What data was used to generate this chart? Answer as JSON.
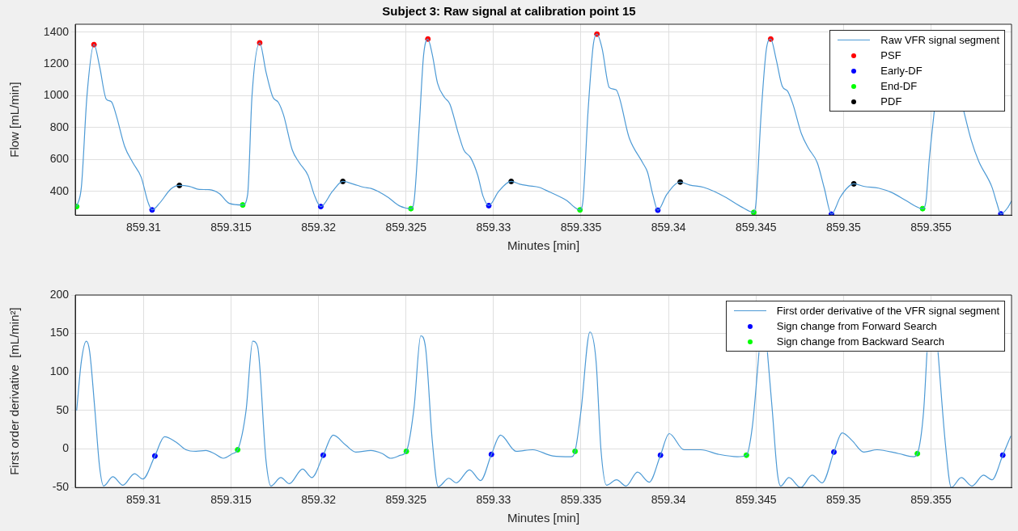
{
  "chart_data": [
    {
      "type": "line",
      "title": "Subject 3: Raw signal at calibration point 15",
      "xlabel": "Minutes [min]",
      "ylabel": "Flow [mL/min]",
      "xlim": [
        859.3061,
        859.3596
      ],
      "xticks": [
        859.31,
        859.315,
        859.32,
        859.325,
        859.33,
        859.335,
        859.34,
        859.345,
        859.35,
        859.355
      ],
      "ylim": [
        250,
        1450
      ],
      "yticks": [
        400,
        600,
        800,
        1000,
        1200,
        1400
      ],
      "grid": true,
      "legend": "top right",
      "series": [
        {
          "name": "Raw VFR signal segment",
          "marker": "none",
          "color": "#4d9ad5",
          "x": [
            859.30618,
            859.30645,
            859.30677,
            859.30717,
            859.30749,
            859.30787,
            859.30816,
            859.30844,
            859.30892,
            859.30939,
            859.30987,
            859.31025,
            859.31049,
            859.31091,
            859.31158,
            859.31205,
            859.31262,
            859.31319,
            859.31376,
            859.31433,
            859.3149,
            859.31567,
            859.31595,
            859.3162,
            859.31664,
            859.317,
            859.3174,
            859.3177,
            859.318,
            859.3185,
            859.3189,
            859.3194,
            859.31975,
            859.32013,
            859.3208,
            859.32139,
            859.322,
            859.3226,
            859.323,
            859.3234,
            859.324,
            859.3246,
            859.32528,
            859.32545,
            859.32575,
            859.326,
            859.32625,
            859.3265,
            859.3268,
            859.3272,
            859.3275,
            859.328,
            859.3283,
            859.3287,
            859.3291,
            859.3294,
            859.32973,
            859.3303,
            859.33101,
            859.3315,
            859.332,
            859.3326,
            859.3332,
            859.33414,
            859.33494,
            859.3351,
            859.3354,
            859.3357,
            859.33591,
            859.3362,
            859.33662,
            859.337,
            859.33776,
            859.33852,
            859.3388,
            859.3391,
            859.33939,
            859.3399,
            859.34067,
            859.3412,
            859.342,
            859.3426,
            859.3433,
            859.3442,
            859.34487,
            859.345,
            859.3453,
            859.3456,
            859.34584,
            859.34615,
            859.3465,
            859.3468,
            859.3471,
            859.3476,
            859.348,
            859.3485,
            859.3489,
            859.34931,
            859.3498,
            859.3502,
            859.35059,
            859.3512,
            859.352,
            859.3528,
            859.3536,
            859.35452,
            859.3547,
            859.3549,
            859.35519,
            859.356,
            859.35686,
            859.3573,
            859.35772,
            859.35848,
            859.35875,
            859.35899,
            859.3594,
            859.3596
          ],
          "values": [
            304,
            427,
            1001,
            1322,
            1185,
            980,
            964,
            878,
            683,
            580,
            488,
            334,
            283,
            324,
            416,
            437,
            431,
            412,
            410,
            386,
            324,
            314,
            380,
            1000,
            1333,
            1150,
            990,
            960,
            880,
            660,
            580,
            500,
            380,
            304,
            400,
            462,
            445,
            425,
            418,
            400,
            360,
            310,
            291,
            330,
            800,
            1250,
            1357,
            1260,
            1080,
            990,
            950,
            760,
            660,
            610,
            500,
            370,
            310,
            400,
            462,
            445,
            435,
            425,
            396,
            345,
            283,
            330,
            900,
            1320,
            1388,
            1300,
            1052,
            1038,
            734,
            580,
            520,
            380,
            281,
            380,
            458,
            440,
            425,
            400,
            360,
            300,
            267,
            330,
            900,
            1300,
            1357,
            1230,
            1060,
            1030,
            950,
            760,
            670,
            580,
            420,
            256,
            360,
            420,
            447,
            430,
            420,
            390,
            340,
            291,
            330,
            600,
            908,
            null,
            908,
            720,
            590,
            427,
            330,
            258,
            300,
            340
          ]
        },
        {
          "name": "PSF",
          "type": "scatter",
          "marker": "circle",
          "color": "#ff0000",
          "x": [
            859.30717,
            859.31664,
            859.32625,
            859.33591,
            859.34584
          ],
          "values": [
            1322,
            1333,
            1357,
            1388,
            1357
          ]
        },
        {
          "name": "Early-DF",
          "type": "scatter",
          "marker": "circle",
          "color": "#0000ff",
          "x": [
            859.31049,
            859.32013,
            859.32973,
            859.33939,
            859.34931,
            859.35899
          ],
          "values": [
            283,
            304,
            310,
            281,
            256,
            258
          ]
        },
        {
          "name": "End-DF",
          "type": "scatter",
          "marker": "circle",
          "color": "#00ff00",
          "x": [
            859.30618,
            859.31567,
            859.32528,
            859.33494,
            859.34487,
            859.35452
          ],
          "values": [
            304,
            314,
            291,
            283,
            267,
            291
          ]
        },
        {
          "name": "PDF",
          "type": "scatter",
          "marker": "circle",
          "color": "#000000",
          "x": [
            859.31205,
            859.32139,
            859.33101,
            859.34067,
            859.35059
          ],
          "values": [
            437,
            462,
            462,
            458,
            447
          ]
        }
      ]
    },
    {
      "type": "line",
      "xlabel": "Minutes [min]",
      "ylabel": "First order derivative  [mL/min²]",
      "xlim": [
        859.3061,
        859.3596
      ],
      "xticks": [
        859.31,
        859.315,
        859.32,
        859.325,
        859.33,
        859.335,
        859.34,
        859.345,
        859.35,
        859.355
      ],
      "ylim": [
        -50,
        200
      ],
      "yticks": [
        -50,
        0,
        50,
        100,
        150,
        200
      ],
      "grid": true,
      "legend": "top right",
      "series": [
        {
          "name": "First order derivative of the VFR signal segment",
          "marker": "none",
          "color": "#4d9ad5",
          "x": [
            859.30618,
            859.30645,
            859.30673,
            859.30692,
            859.30721,
            859.30749,
            859.30772,
            859.30825,
            859.30882,
            859.30949,
            859.30996,
            859.31065,
            859.3112,
            859.31186,
            859.31243,
            859.313,
            859.31357,
            859.31405,
            859.31456,
            859.31509,
            859.31538,
            859.31586,
            859.31624,
            859.31652,
            859.317,
            859.31728,
            859.31785,
            859.31833,
            859.31909,
            859.31962,
            859.32027,
            859.32084,
            859.32156,
            859.32213,
            859.32299,
            859.32365,
            859.32413,
            859.3247,
            859.32502,
            859.32546,
            859.32584,
            859.32612,
            859.3265,
            859.32684,
            859.32745,
            859.32787,
            859.32863,
            859.32926,
            859.32988,
            859.3304,
            859.33129,
            859.33224,
            859.33338,
            859.33443,
            859.33466,
            859.335,
            859.33551,
            859.33586,
            859.33614,
            859.33646,
            859.33703,
            859.33757,
            859.33823,
            859.3389,
            859.33954,
            859.34004,
            859.34089,
            859.34184,
            859.34289,
            859.34393,
            859.34445,
            859.34479,
            859.34508,
            859.34517,
            859.3454,
            859.34565,
            859.34593,
            859.34622,
            859.34641,
            859.34688,
            859.34755,
            859.34821,
            859.34878,
            859.34945,
            859.34992,
            859.35049,
            859.35116,
            859.35192,
            859.35315,
            859.35401,
            859.35422,
            859.35458,
            859.35477,
            859.355,
            859.3554,
            859.35582,
            859.35616,
            859.35673,
            859.35734,
            859.358,
            859.35848,
            859.3591,
            859.35956
          ],
          "values": [
            50,
            114,
            140,
            127,
            54,
            -23,
            -48,
            -36,
            -47,
            -32,
            -39,
            -9,
            16,
            9,
            -1,
            -3,
            -2,
            -6,
            -12,
            -6,
            -1,
            50,
            140,
            133,
            -15,
            -48,
            -37,
            -45,
            -26,
            -37,
            -8,
            18,
            5,
            -4,
            -2,
            -6,
            -12,
            -8,
            -3,
            54,
            147,
            131,
            11,
            -49,
            -38,
            -44,
            -27,
            -41,
            -7,
            18,
            -3,
            -1,
            -9,
            -10,
            -3,
            50,
            152,
            114,
            -1,
            -47,
            -40,
            -48,
            -30,
            -43,
            -8,
            20,
            -1,
            -1,
            -7,
            -10,
            -8,
            29,
            101,
            126,
            null,
            126,
            50,
            -31,
            -48,
            -37,
            -50,
            -34,
            -44,
            -4,
            21,
            11,
            -4,
            -1,
            -6,
            -10,
            -6,
            50,
            126,
            null,
            126,
            7,
            -50,
            -37,
            -48,
            -34,
            -40,
            -8,
            17
          ]
        },
        {
          "name": "Sign change from Forward Search",
          "type": "scatter",
          "marker": "circle",
          "color": "#0000ff",
          "x": [
            859.31065,
            859.32027,
            859.32988,
            859.33954,
            859.34945,
            859.3591
          ],
          "values": [
            -9,
            -8,
            -7,
            -8,
            -4,
            -8
          ]
        },
        {
          "name": "Sign change from Backward Search",
          "type": "scatter",
          "marker": "circle",
          "color": "#00ff00",
          "x": [
            859.31538,
            859.32502,
            859.33466,
            859.34445,
            859.35422
          ],
          "values": [
            -1,
            -3,
            -3,
            -8,
            -6
          ]
        }
      ]
    }
  ]
}
